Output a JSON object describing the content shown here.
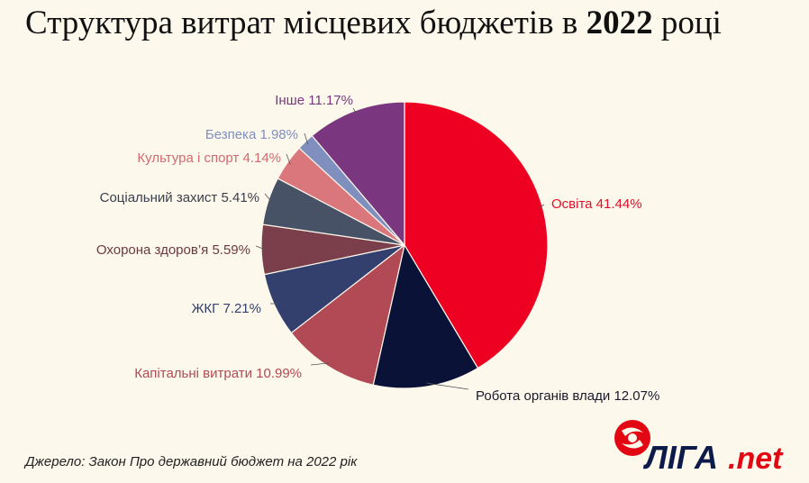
{
  "title": {
    "prefix": "Структура витрат місцевих бюджетів в",
    "year": "2022",
    "suffix": "році"
  },
  "source": "Джерело: Закон Про державний бюджет на 2022 рік",
  "logo": {
    "brand": "ЛІГА",
    "suffix": ".net",
    "accent": "#e30613",
    "dark": "#0d1b4a"
  },
  "chart_data": {
    "type": "pie",
    "title": "Структура витрат місцевих бюджетів в 2022 році",
    "series": [
      {
        "name": "Освіта",
        "value": 41.44,
        "label": "Освіта 41.44%",
        "color": "#ee0022",
        "labelColor": "#e0102a"
      },
      {
        "name": "Робота органів влади",
        "value": 12.07,
        "label": "Робота органів влади 12.07%",
        "color": "#0b1238",
        "labelColor": "#1a1a2e"
      },
      {
        "name": "Капітальні витрати",
        "value": 10.99,
        "label": "Капітальні витрати 10.99%",
        "color": "#b24a55",
        "labelColor": "#b24a55"
      },
      {
        "name": "ЖКГ",
        "value": 7.21,
        "label": "ЖКГ 7.21%",
        "color": "#33406e",
        "labelColor": "#33406e"
      },
      {
        "name": "Охорона здоров'я",
        "value": 5.59,
        "label": "Охорона здоров’я 5.59%",
        "color": "#7a3f4a",
        "labelColor": "#6a3a42"
      },
      {
        "name": "Соціальний захист",
        "value": 5.41,
        "label": "Соціальний захист 5.41%",
        "color": "#475266",
        "labelColor": "#3a3f4c"
      },
      {
        "name": "Культура і спорт",
        "value": 4.14,
        "label": "Культура і спорт 4.14%",
        "color": "#d9777c",
        "labelColor": "#d26a6f"
      },
      {
        "name": "Безпека",
        "value": 1.98,
        "label": "Безпека 1.98%",
        "color": "#7f8fbe",
        "labelColor": "#7f8fbe"
      },
      {
        "name": "Інше",
        "value": 11.17,
        "label": "Інше 11.17%",
        "color": "#7b3680",
        "labelColor": "#7b3680"
      }
    ]
  }
}
